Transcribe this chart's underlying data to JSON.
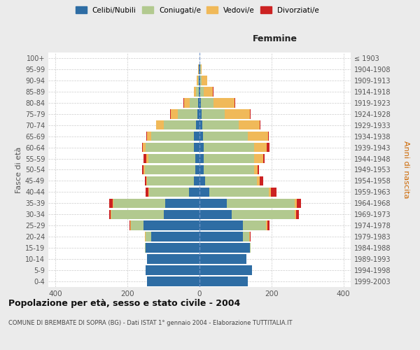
{
  "age_groups": [
    "0-4",
    "5-9",
    "10-14",
    "15-19",
    "20-24",
    "25-29",
    "30-34",
    "35-39",
    "40-44",
    "45-49",
    "50-54",
    "55-59",
    "60-64",
    "65-69",
    "70-74",
    "75-79",
    "80-84",
    "85-89",
    "90-94",
    "95-99",
    "100+"
  ],
  "birth_years": [
    "1999-2003",
    "1994-1998",
    "1989-1993",
    "1984-1988",
    "1979-1983",
    "1974-1978",
    "1969-1973",
    "1964-1968",
    "1959-1963",
    "1954-1958",
    "1949-1953",
    "1944-1948",
    "1939-1943",
    "1934-1938",
    "1929-1933",
    "1924-1928",
    "1919-1923",
    "1914-1918",
    "1909-1913",
    "1904-1908",
    "≤ 1903"
  ],
  "male": {
    "celibi": [
      145,
      150,
      145,
      150,
      135,
      155,
      100,
      95,
      30,
      15,
      12,
      12,
      15,
      15,
      10,
      5,
      3,
      2,
      1,
      1,
      0
    ],
    "coniugati": [
      0,
      0,
      0,
      2,
      15,
      35,
      145,
      145,
      110,
      130,
      140,
      130,
      135,
      120,
      90,
      55,
      25,
      8,
      3,
      1,
      0
    ],
    "vedovi": [
      0,
      0,
      0,
      0,
      1,
      2,
      2,
      2,
      2,
      3,
      4,
      5,
      8,
      10,
      20,
      20,
      15,
      5,
      3,
      1,
      0
    ],
    "divorziati": [
      0,
      0,
      0,
      0,
      1,
      2,
      4,
      8,
      8,
      3,
      3,
      8,
      2,
      2,
      1,
      1,
      1,
      0,
      0,
      0,
      0
    ]
  },
  "female": {
    "nubili": [
      135,
      145,
      130,
      140,
      120,
      120,
      90,
      75,
      28,
      15,
      12,
      12,
      12,
      10,
      8,
      5,
      3,
      2,
      1,
      1,
      0
    ],
    "coniugate": [
      0,
      0,
      0,
      2,
      18,
      65,
      175,
      190,
      165,
      145,
      140,
      140,
      140,
      125,
      100,
      65,
      35,
      10,
      5,
      2,
      0
    ],
    "vedove": [
      0,
      0,
      0,
      0,
      2,
      4,
      4,
      5,
      5,
      8,
      10,
      25,
      35,
      55,
      60,
      70,
      60,
      25,
      15,
      2,
      0
    ],
    "divorziate": [
      0,
      0,
      0,
      0,
      2,
      5,
      8,
      12,
      15,
      8,
      4,
      3,
      8,
      2,
      2,
      2,
      2,
      2,
      0,
      0,
      0
    ]
  },
  "colors": {
    "celibi": "#2E6DA4",
    "coniugati": "#B2C98F",
    "vedovi": "#F0B959",
    "divorziati": "#CC2222"
  },
  "title": "Popolazione per età, sesso e stato civile - 2004",
  "subtitle": "COMUNE DI BREMBATE DI SOPRA (BG) - Dati ISTAT 1° gennaio 2004 - Elaborazione TUTTITALIA.IT",
  "xlabel_right": "Femmine",
  "ylabel_left": "Fasce di età",
  "ylabel_right": "Anni di nascita",
  "xlim": 420,
  "background_color": "#EBEBEB",
  "plot_bg_color": "#FFFFFF"
}
